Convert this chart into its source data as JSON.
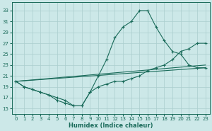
{
  "xlabel": "Humidex (Indice chaleur)",
  "bg_color": "#cce8e8",
  "grid_color": "#aacece",
  "line_color": "#1a6b5a",
  "x_ticks": [
    0,
    1,
    2,
    3,
    4,
    5,
    6,
    7,
    8,
    9,
    10,
    11,
    12,
    13,
    14,
    15,
    16,
    17,
    18,
    19,
    20,
    21,
    22,
    23
  ],
  "y_ticks": [
    15,
    17,
    19,
    21,
    23,
    25,
    27,
    29,
    31,
    33
  ],
  "xlim": [
    -0.5,
    23.5
  ],
  "ylim": [
    14.0,
    34.5
  ],
  "series1_x": [
    0,
    1,
    2,
    3,
    4,
    5,
    6,
    7,
    8,
    9,
    10,
    11,
    12,
    13,
    14,
    15,
    16,
    17,
    18,
    19,
    20,
    21,
    22,
    23
  ],
  "series1_y": [
    20,
    19,
    18.5,
    18,
    17.5,
    17,
    16.5,
    15.5,
    15.5,
    18,
    21,
    24,
    28,
    30,
    31,
    33,
    33,
    30,
    27.5,
    25.5,
    25,
    23,
    22.5,
    22.5
  ],
  "series2_x": [
    0,
    1,
    2,
    3,
    4,
    5,
    6,
    7,
    8,
    9,
    10,
    11,
    12,
    13,
    14,
    15,
    16,
    17,
    18,
    19,
    20,
    21,
    22,
    23
  ],
  "series2_y": [
    20,
    19,
    18.5,
    18,
    17.5,
    16.5,
    16,
    15.5,
    15.5,
    18,
    19,
    19.5,
    20,
    20,
    20.5,
    21,
    22,
    22.5,
    23,
    24,
    25.5,
    26,
    27,
    27
  ],
  "series3_x": [
    0,
    23
  ],
  "series3_y": [
    20,
    22.5
  ],
  "series4_x": [
    0,
    23
  ],
  "series4_y": [
    20,
    23
  ],
  "figwidth": 3.0,
  "figheight": 1.85,
  "dpi": 100
}
